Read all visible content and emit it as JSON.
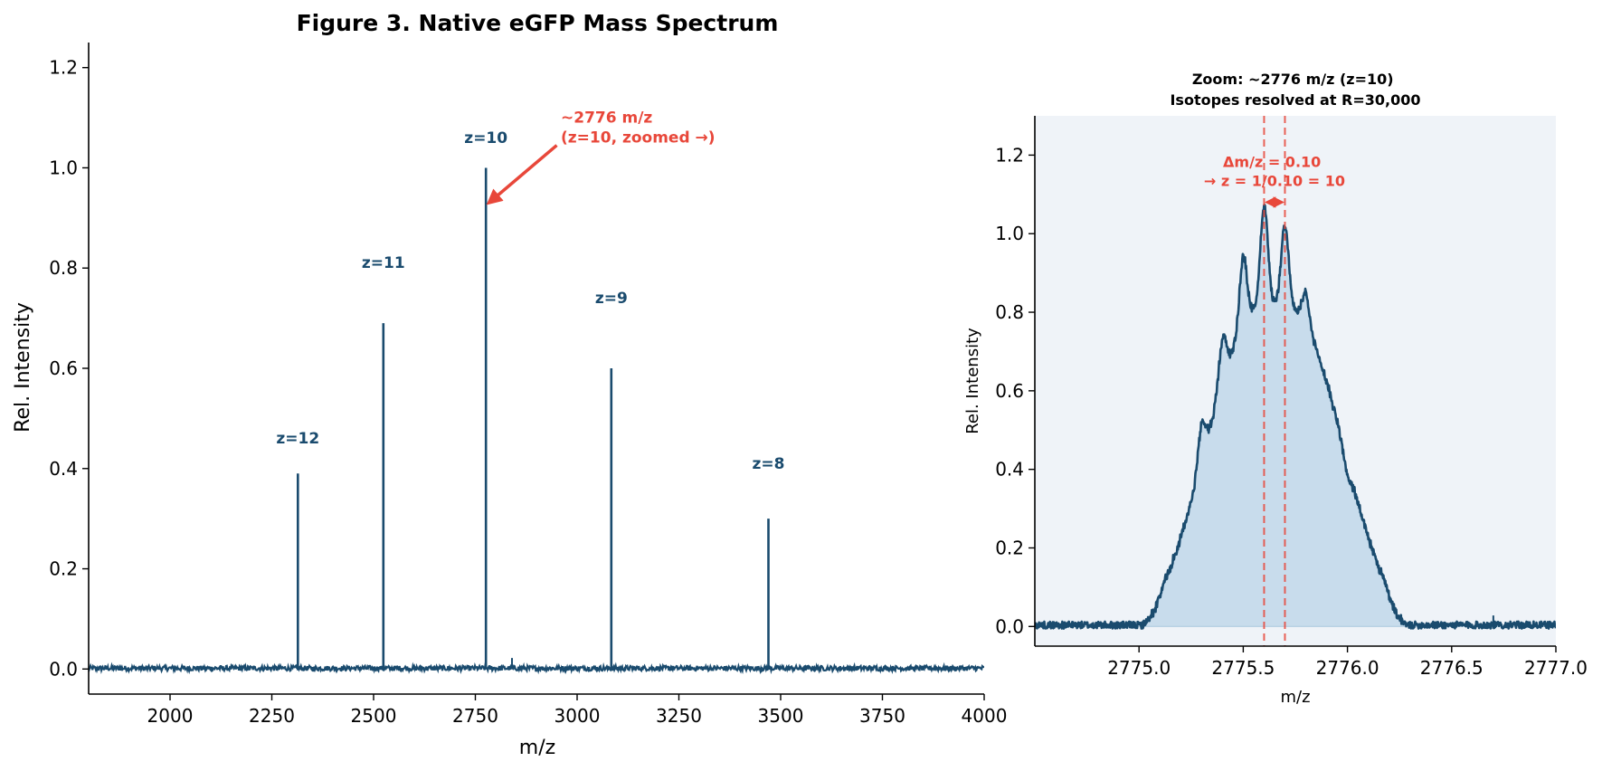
{
  "colors": {
    "series": "#1a4b6e",
    "annotation": "#e8473a",
    "zoom_background": "#eff3f8",
    "zoom_fill": "#c8dcec"
  },
  "chart_data": [
    {
      "type": "line",
      "title": "Figure 3.  Native eGFP Mass Spectrum",
      "xlabel": "m/z",
      "ylabel": "Rel. Intensity",
      "xlim": [
        1800,
        4000
      ],
      "ylim": [
        -0.05,
        1.25
      ],
      "xticks": [
        2000,
        2250,
        2500,
        2750,
        3000,
        3250,
        3500,
        3750,
        4000
      ],
      "yticks": [
        0.0,
        0.2,
        0.4,
        0.6,
        0.8,
        1.0,
        1.2
      ],
      "grid": false,
      "baseline_noise": 0.01,
      "peaks": [
        {
          "label": "z=12",
          "mz": 2314,
          "intensity": 0.39,
          "label_y": 0.45
        },
        {
          "label": "z=11",
          "mz": 2524,
          "intensity": 0.69,
          "label_y": 0.8
        },
        {
          "label": "z=10",
          "mz": 2776,
          "intensity": 1.0,
          "label_y": 1.05
        },
        {
          "label": "z=9",
          "mz": 3084,
          "intensity": 0.6,
          "label_y": 0.73
        },
        {
          "label": "z=8",
          "mz": 3470,
          "intensity": 0.3,
          "label_y": 0.4
        }
      ],
      "annotation": {
        "lines": [
          "~2776 m/z",
          "(z=10, zoomed →)"
        ],
        "text_at": [
          2960,
          1.09
        ],
        "arrow_from": [
          2950,
          1.045
        ],
        "arrow_to": [
          2783,
          0.93
        ]
      }
    },
    {
      "type": "area",
      "title": [
        "Zoom: ~2776 m/z  (z=10)",
        "Isotopes resolved at R=30,000"
      ],
      "xlabel": "m/z",
      "ylabel": "Rel. Intensity",
      "xlim": [
        2774.5,
        2777.0
      ],
      "ylim": [
        -0.05,
        1.3
      ],
      "xticks": [
        2775.0,
        2775.5,
        2776.0,
        2776.5,
        2777.0
      ],
      "yticks": [
        0.0,
        0.2,
        0.4,
        0.6,
        0.8,
        1.0,
        1.2
      ],
      "grid": false,
      "envelope": {
        "center": 2775.65,
        "sigma": 0.3,
        "amplitude": 0.91
      },
      "isotope_spacing": 0.1,
      "isotope_peaks_x": [
        2775.3,
        2775.4,
        2775.5,
        2775.6,
        2775.7,
        2775.8,
        2775.9,
        2776.0
      ],
      "isotope_peaks_y": [
        0.51,
        0.73,
        0.94,
        1.07,
        1.02,
        0.84,
        0.62,
        0.38
      ],
      "marker_lines_x": [
        2775.6,
        2775.7
      ],
      "annotation": {
        "lines": [
          "Δm/z = 0.10",
          "→ z = 1/0.10 = 10"
        ],
        "text_at": [
          2775.65,
          1.17
        ],
        "arrow_y": 1.08
      }
    }
  ]
}
